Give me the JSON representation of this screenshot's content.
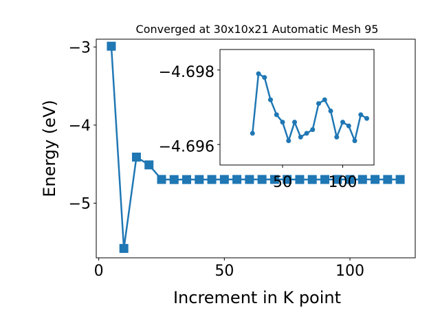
{
  "chart_data": [
    {
      "type": "line",
      "title": "Converged at 30x10x21 Automatic Mesh 95",
      "xlabel": "Increment in K point",
      "ylabel": "Energy (eV)",
      "xlim": [
        -1,
        126
      ],
      "ylim": [
        -5.7,
        -2.9
      ],
      "xticks": [
        0,
        50,
        100
      ],
      "xtick_labels": [
        "0",
        "50",
        "100"
      ],
      "yticks": [
        -5,
        -4,
        -3
      ],
      "ytick_labels": [
        "−5",
        "−4",
        "−3"
      ],
      "grid": false,
      "colors": {
        "series": "#1f77b4"
      },
      "series": [
        {
          "marker": "square",
          "x": [
            5,
            10,
            15,
            20,
            25,
            30,
            35,
            40,
            45,
            50,
            55,
            60,
            65,
            70,
            75,
            80,
            85,
            90,
            95,
            100,
            105,
            110,
            115,
            120
          ],
          "y": [
            -2.99,
            -5.58,
            -4.41,
            -4.51,
            -4.6963,
            -4.6979,
            -4.6978,
            -4.6972,
            -4.6968,
            -4.6966,
            -4.6961,
            -4.6966,
            -4.6962,
            -4.6963,
            -4.6964,
            -4.6971,
            -4.6972,
            -4.6969,
            -4.6962,
            -4.6966,
            -4.6965,
            -4.6961,
            -4.6968,
            -4.6967
          ]
        }
      ]
    },
    {
      "type": "line",
      "title": "",
      "xlabel": "",
      "ylabel": "",
      "xlim": [
        -2,
        126
      ],
      "ylim": [
        -4.69545,
        -4.69855
      ],
      "y_inverted": true,
      "xticks": [
        50,
        100
      ],
      "xtick_labels": [
        "50",
        "100"
      ],
      "yticks": [
        -4.698,
        -4.696
      ],
      "ytick_labels": [
        "−4.698",
        "−4.696"
      ],
      "grid": false,
      "colors": {
        "series": "#1f77b4"
      },
      "series": [
        {
          "marker": "circle",
          "x": [
            25,
            30,
            35,
            40,
            45,
            50,
            55,
            60,
            65,
            70,
            75,
            80,
            85,
            90,
            95,
            100,
            105,
            110,
            115,
            120
          ],
          "y": [
            -4.6963,
            -4.6979,
            -4.6978,
            -4.6972,
            -4.6968,
            -4.6966,
            -4.6961,
            -4.6966,
            -4.6962,
            -4.6963,
            -4.6964,
            -4.6971,
            -4.6972,
            -4.6969,
            -4.6962,
            -4.6966,
            -4.6965,
            -4.6961,
            -4.6968,
            -4.6967
          ]
        }
      ]
    }
  ]
}
